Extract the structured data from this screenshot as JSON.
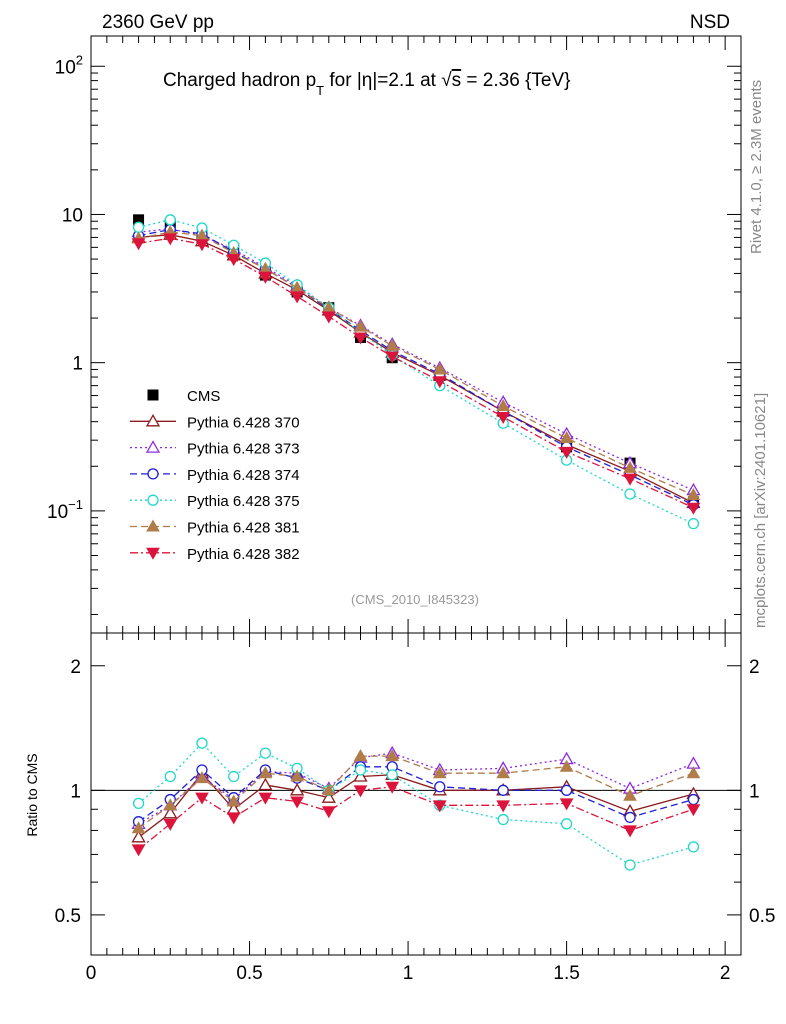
{
  "header": {
    "left": "2360 GeV pp",
    "right": "NSD"
  },
  "title": {
    "prefix": "Charged hadron p",
    "sub": "T",
    "mid": " for |η|=2.1 at ",
    "sqrt": "√",
    "s": "s",
    "suffix": " = 2.36 {TeV}"
  },
  "side_labels": {
    "rivet": "Rivet 4.1.0, ≥ 2.3M events",
    "mcplots": "mcplots.cern.ch [arXiv:2401.10621]"
  },
  "analysis_id": "(CMS_2010_I845323)",
  "chart_data": [
    {
      "type": "scatter",
      "panel": "main",
      "title": "Charged hadron p_T for |η|=2.1 at √s = 2.36 {TeV}",
      "xlabel": "",
      "ylabel": "",
      "yscale": "log",
      "xlim": [
        0,
        2.05
      ],
      "ylim": [
        0.015,
        160
      ],
      "x_ticks": [
        "0",
        "0.5",
        "1",
        "1.5",
        "2"
      ],
      "y_ticks": [
        {
          "value": 100,
          "base": "10",
          "exp": "2"
        },
        {
          "value": 10,
          "base": "10",
          "exp": ""
        },
        {
          "value": 1,
          "base": "1",
          "exp": ""
        },
        {
          "value": 0.1,
          "base": "10",
          "exp": "−1"
        }
      ],
      "x": [
        0.15,
        0.25,
        0.35,
        0.45,
        0.55,
        0.65,
        0.75,
        0.85,
        0.95,
        1.1,
        1.3,
        1.5,
        1.7,
        1.9
      ],
      "series": [
        {
          "name": "CMS",
          "color": "#000000",
          "marker": "square-filled",
          "line": "none",
          "values": [
            9.2,
            8.6,
            6.7,
            5.9,
            3.9,
            3.0,
            2.35,
            1.48,
            1.08,
            0.82,
            0.47,
            0.27,
            0.21,
            0.115
          ]
        },
        {
          "name": "Pythia 6.428 370",
          "color": "#8b1a1a",
          "marker": "triangle-up-open",
          "line": "solid",
          "values": [
            7.0,
            7.3,
            6.6,
            5.3,
            4.0,
            3.1,
            2.25,
            1.6,
            1.17,
            0.82,
            0.47,
            0.28,
            0.185,
            0.113
          ]
        },
        {
          "name": "Pythia 6.428 373",
          "color": "#8a2be2",
          "marker": "triangle-up-open",
          "line": "dotted",
          "values": [
            7.6,
            8.0,
            7.2,
            5.8,
            4.4,
            3.3,
            2.35,
            1.78,
            1.33,
            0.92,
            0.54,
            0.33,
            0.21,
            0.138
          ]
        },
        {
          "name": "Pythia 6.428 374",
          "color": "#1f1fd6",
          "marker": "circle-open",
          "line": "dashed",
          "values": [
            7.2,
            7.9,
            7.4,
            5.6,
            4.3,
            3.2,
            2.3,
            1.65,
            1.2,
            0.84,
            0.47,
            0.27,
            0.175,
            0.11
          ]
        },
        {
          "name": "Pythia 6.428 375",
          "color": "#1fd8c8",
          "marker": "circle-open",
          "line": "dotted",
          "values": [
            8.2,
            9.2,
            8.1,
            6.2,
            4.7,
            3.35,
            2.35,
            1.6,
            1.12,
            0.7,
            0.39,
            0.22,
            0.13,
            0.082
          ]
        },
        {
          "name": "Pythia 6.428 381",
          "color": "#b07c4a",
          "marker": "triangle-up-filled",
          "line": "dashed",
          "values": [
            6.9,
            7.6,
            7.2,
            5.5,
            4.3,
            3.2,
            2.35,
            1.75,
            1.3,
            0.9,
            0.51,
            0.31,
            0.195,
            0.128
          ]
        },
        {
          "name": "Pythia 6.428 382",
          "color": "#dc143c",
          "marker": "triangle-down-filled",
          "line": "dashdot",
          "values": [
            6.4,
            6.9,
            6.3,
            5.0,
            3.8,
            2.8,
            2.05,
            1.48,
            1.1,
            0.75,
            0.43,
            0.25,
            0.165,
            0.105
          ]
        }
      ]
    },
    {
      "type": "scatter",
      "panel": "ratio",
      "xlabel": "",
      "ylabel": "Ratio to CMS",
      "yscale": "log",
      "xlim": [
        0,
        2.05
      ],
      "ylim": [
        0.4,
        2.4
      ],
      "x_ticks": [
        "0",
        "0.5",
        "1",
        "1.5",
        "2"
      ],
      "y_ticks": [
        {
          "value": 0.5,
          "label": "0.5"
        },
        {
          "value": 1,
          "label": "1"
        },
        {
          "value": 2,
          "label": "2"
        }
      ],
      "reference_line": 1,
      "x": [
        0.15,
        0.25,
        0.35,
        0.45,
        0.55,
        0.65,
        0.75,
        0.85,
        0.95,
        1.1,
        1.3,
        1.5,
        1.7,
        1.9
      ],
      "series": [
        {
          "name": "Pythia 6.428 370",
          "color": "#8b1a1a",
          "marker": "triangle-up-open",
          "line": "solid",
          "values": [
            0.77,
            0.88,
            1.1,
            0.9,
            1.03,
            1.0,
            0.96,
            1.08,
            1.09,
            1.0,
            1.0,
            1.02,
            0.89,
            0.98
          ]
        },
        {
          "name": "Pythia 6.428 373",
          "color": "#8a2be2",
          "marker": "triangle-up-open",
          "line": "dotted",
          "values": [
            0.83,
            0.92,
            1.08,
            0.95,
            1.11,
            1.1,
            1.01,
            1.2,
            1.23,
            1.12,
            1.13,
            1.19,
            1.01,
            1.16
          ]
        },
        {
          "name": "Pythia 6.428 374",
          "color": "#1f1fd6",
          "marker": "circle-open",
          "line": "dashed",
          "values": [
            0.84,
            0.95,
            1.12,
            0.96,
            1.12,
            1.07,
            1.0,
            1.14,
            1.14,
            1.02,
            1.0,
            1.0,
            0.86,
            0.95
          ]
        },
        {
          "name": "Pythia 6.428 375",
          "color": "#1fd8c8",
          "marker": "circle-open",
          "line": "dotted",
          "values": [
            0.93,
            1.08,
            1.3,
            1.08,
            1.23,
            1.13,
            1.0,
            1.12,
            1.09,
            0.92,
            0.85,
            0.83,
            0.66,
            0.73
          ]
        },
        {
          "name": "Pythia 6.428 381",
          "color": "#b07c4a",
          "marker": "triangle-up-filled",
          "line": "dashed",
          "values": [
            0.81,
            0.92,
            1.07,
            0.94,
            1.1,
            1.08,
            1.0,
            1.21,
            1.21,
            1.1,
            1.1,
            1.14,
            0.97,
            1.1
          ]
        },
        {
          "name": "Pythia 6.428 382",
          "color": "#dc143c",
          "marker": "triangle-down-filled",
          "line": "dashdot",
          "values": [
            0.72,
            0.83,
            0.96,
            0.86,
            0.96,
            0.94,
            0.89,
            1.0,
            1.02,
            0.92,
            0.92,
            0.93,
            0.8,
            0.9
          ]
        }
      ]
    }
  ]
}
